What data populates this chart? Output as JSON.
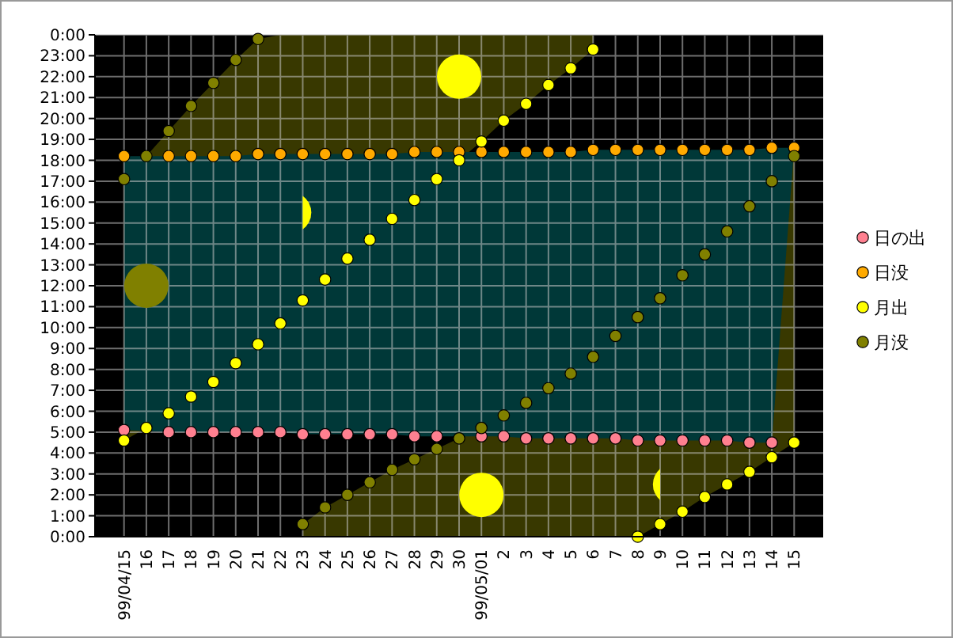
{
  "chart_data": {
    "type": "scatter",
    "categories": [
      "99/04/15",
      "16",
      "17",
      "18",
      "19",
      "20",
      "21",
      "22",
      "23",
      "24",
      "25",
      "26",
      "27",
      "28",
      "29",
      "30",
      "99/05/01",
      "2",
      "3",
      "4",
      "5",
      "6",
      "7",
      "8",
      "9",
      "10",
      "11",
      "12",
      "13",
      "14",
      "15"
    ],
    "series": [
      {
        "name": "日の出",
        "color": "#ff8090",
        "values": [
          5.1,
          null,
          5.0,
          5.0,
          5.0,
          5.0,
          5.0,
          5.0,
          4.9,
          4.9,
          4.9,
          4.9,
          4.9,
          4.8,
          4.8,
          null,
          4.8,
          4.8,
          4.7,
          4.7,
          4.7,
          4.7,
          4.7,
          4.6,
          4.6,
          4.6,
          4.6,
          4.6,
          4.5,
          4.5,
          null
        ]
      },
      {
        "name": "日没",
        "color": "#ffaa00",
        "values": [
          18.2,
          null,
          18.2,
          18.2,
          18.2,
          18.2,
          18.3,
          18.3,
          18.3,
          18.3,
          18.3,
          18.3,
          18.3,
          18.4,
          18.4,
          18.4,
          18.4,
          18.4,
          18.4,
          18.4,
          18.4,
          18.5,
          18.5,
          18.5,
          18.5,
          18.5,
          18.5,
          18.5,
          18.5,
          18.6,
          18.6
        ]
      },
      {
        "name": "月出",
        "color": "#ffff00",
        "values": [
          4.6,
          5.2,
          5.9,
          6.7,
          7.4,
          8.3,
          9.2,
          10.2,
          11.3,
          12.3,
          13.3,
          14.2,
          15.2,
          16.1,
          17.1,
          18.0,
          18.9,
          19.9,
          20.7,
          21.6,
          22.4,
          23.3,
          null,
          0.0,
          0.6,
          1.2,
          1.9,
          2.5,
          3.1,
          3.8,
          4.5
        ]
      },
      {
        "name": "月没",
        "color": "#808000",
        "values": [
          17.1,
          18.2,
          19.4,
          20.6,
          21.7,
          22.8,
          23.8,
          null,
          0.6,
          1.4,
          2.0,
          2.6,
          3.2,
          3.7,
          4.2,
          4.7,
          5.2,
          5.8,
          6.4,
          7.1,
          7.8,
          8.6,
          9.6,
          10.5,
          11.4,
          12.5,
          13.5,
          14.6,
          15.8,
          17.0,
          18.2
        ]
      }
    ],
    "ylim": [
      0,
      24
    ],
    "yticks": [
      {
        "value": 0,
        "label": "0:00"
      },
      {
        "value": 1,
        "label": "1:00"
      },
      {
        "value": 2,
        "label": "2:00"
      },
      {
        "value": 3,
        "label": "3:00"
      },
      {
        "value": 4,
        "label": "4:00"
      },
      {
        "value": 5,
        "label": "5:00"
      },
      {
        "value": 6,
        "label": "6:00"
      },
      {
        "value": 7,
        "label": "7:00"
      },
      {
        "value": 8,
        "label": "8:00"
      },
      {
        "value": 9,
        "label": "9:00"
      },
      {
        "value": 10,
        "label": "10:00"
      },
      {
        "value": 11,
        "label": "11:00"
      },
      {
        "value": 12,
        "label": "12:00"
      },
      {
        "value": 13,
        "label": "13:00"
      },
      {
        "value": 14,
        "label": "14:00"
      },
      {
        "value": 15,
        "label": "15:00"
      },
      {
        "value": 16,
        "label": "16:00"
      },
      {
        "value": 17,
        "label": "17:00"
      },
      {
        "value": 18,
        "label": "18:00"
      },
      {
        "value": 19,
        "label": "19:00"
      },
      {
        "value": 20,
        "label": "20:00"
      },
      {
        "value": 21,
        "label": "21:00"
      },
      {
        "value": 22,
        "label": "22:00"
      },
      {
        "value": 23,
        "label": "23:00"
      },
      {
        "value": 24,
        "label": "0:00"
      }
    ],
    "grid": true,
    "legend": "right",
    "marker": "circle"
  }
}
